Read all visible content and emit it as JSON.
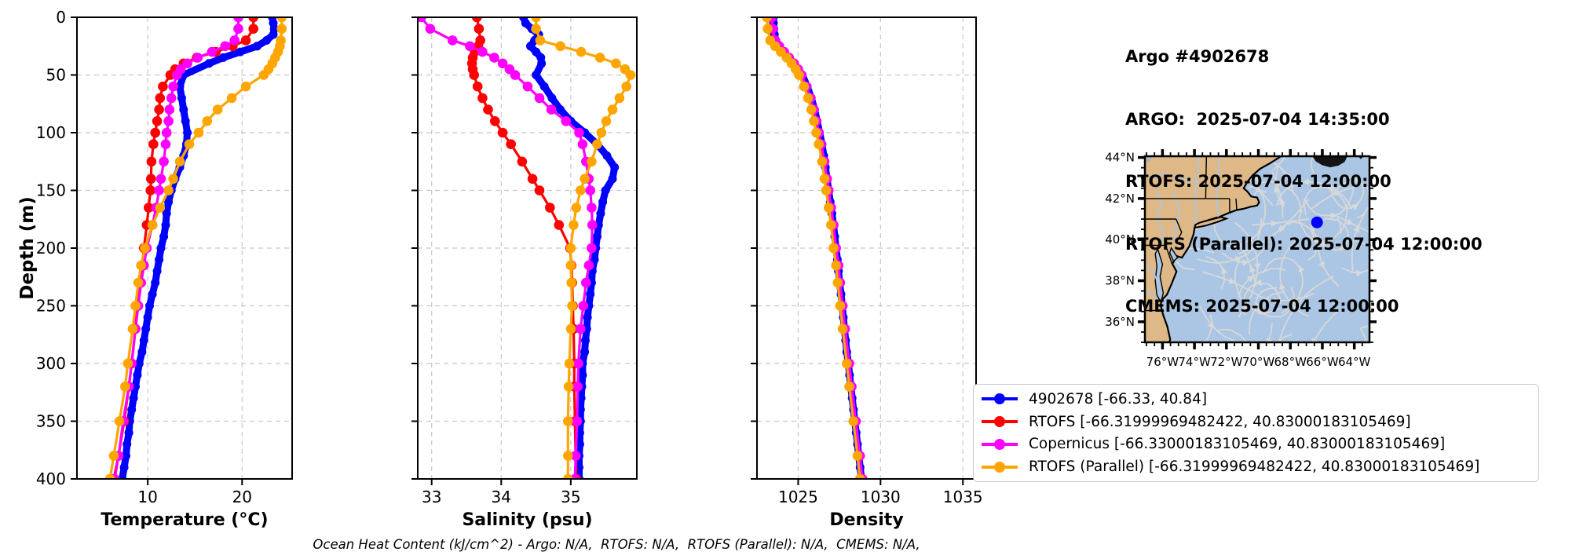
{
  "title_block": {
    "lines": [
      "Argo #4902678",
      "ARGO:  2025-07-04 14:35:00",
      "RTOFS: 2025-07-04 12:00:00",
      "RTOFS (Parallel): 2025-07-04 12:00:00",
      "CMEMS: 2025-07-04 12:00:00"
    ]
  },
  "caption": "Ocean Heat Content (kJ/cm^2) - Argo: N/A,  RTOFS: N/A,  RTOFS (Parallel): N/A,  CMEMS: N/A,",
  "depth_axis": {
    "label": "Depth (m)",
    "ticks": [
      0,
      50,
      100,
      150,
      200,
      250,
      300,
      350,
      400
    ],
    "range": [
      0,
      400
    ]
  },
  "colors": {
    "argo": "#0000ff",
    "rtofs": "#ff0000",
    "copernicus": "#ff00ff",
    "rtofs_parallel": "#ffa500",
    "grid": "#c8c8c8",
    "frame": "#000000"
  },
  "legend": {
    "entries": [
      {
        "label": "4902678 [-66.33, 40.84]",
        "color": "#0000ff"
      },
      {
        "label": "RTOFS [-66.31999969482422, 40.83000183105469]",
        "color": "#ff0000"
      },
      {
        "label": "Copernicus [-66.33000183105469, 40.83000183105469]",
        "color": "#ff00ff"
      },
      {
        "label": "RTOFS (Parallel) [-66.31999969482422, 40.83000183105469]",
        "color": "#ffa500"
      }
    ]
  },
  "map": {
    "lon_tick_labels": [
      "76°W",
      "74°W",
      "72°W",
      "70°W",
      "68°W",
      "66°W",
      "64°W"
    ],
    "lon_tick_values": [
      -76,
      -74,
      -72,
      -70,
      -68,
      -66,
      -64
    ],
    "lat_tick_labels": [
      "44°N",
      "42°N",
      "40°N",
      "38°N",
      "36°N"
    ],
    "lat_tick_values": [
      44,
      42,
      40,
      38,
      36
    ],
    "extent": {
      "lon_west": -77.1,
      "lon_east": -63.05,
      "lat_south": 35.0,
      "lat_north": 44.06
    },
    "marker": {
      "lon": -66.33,
      "lat": 40.84,
      "color": "#0000ff"
    },
    "land_color": "#deb887",
    "ocean_color": "#aac6e4",
    "streamline_color": "#d8d8d8"
  },
  "chart_data": [
    {
      "type": "line",
      "xlabel": "Temperature (°C)",
      "xlim": [
        2.5,
        25.3
      ],
      "xticks": [
        10,
        20
      ],
      "xtick_labels": [
        "10",
        "20"
      ],
      "ylabel": "Depth (m)",
      "ylim": [
        0,
        400
      ],
      "grid": true,
      "series": [
        {
          "name": "4902678",
          "color": "#0000ff",
          "line_width": 9,
          "marker_size": 5.5,
          "depths": [
            0,
            5,
            10,
            15,
            20,
            25,
            30,
            35,
            40,
            50,
            60,
            70,
            80,
            90,
            100,
            110,
            120,
            130,
            140,
            150,
            160,
            170,
            180,
            190,
            200,
            210,
            220,
            230,
            240,
            250,
            260,
            270,
            280,
            290,
            300,
            310,
            320,
            330,
            340,
            350,
            360,
            370,
            380,
            390,
            400
          ],
          "values": [
            23.2,
            23.3,
            23.4,
            23.3,
            22.6,
            21.6,
            19.8,
            18.0,
            16.5,
            13.8,
            13.4,
            13.6,
            13.8,
            14.0,
            14.2,
            14.1,
            13.8,
            13.4,
            12.9,
            12.5,
            12.2,
            12.0,
            11.9,
            11.7,
            11.4,
            11.2,
            11.0,
            10.8,
            10.5,
            10.2,
            10.0,
            9.8,
            9.6,
            9.4,
            9.1,
            8.9,
            8.7,
            8.5,
            8.3,
            8.1,
            8.0,
            7.8,
            7.7,
            7.5,
            7.3
          ]
        },
        {
          "name": "RTOFS",
          "color": "#ff0000",
          "line_width": 3.2,
          "marker_size": 6.3,
          "depths": [
            0,
            10,
            20,
            25,
            30,
            35,
            40,
            45,
            50,
            60,
            70,
            80,
            90,
            100,
            110,
            125,
            140,
            150,
            165,
            180,
            200,
            215,
            230,
            250,
            270,
            300,
            320,
            350,
            380,
            400
          ],
          "values": [
            21.2,
            21.2,
            20.4,
            19.0,
            17.2,
            15.2,
            13.8,
            12.9,
            12.4,
            11.6,
            11.3,
            11.2,
            11.0,
            10.8,
            10.6,
            10.4,
            10.35,
            10.3,
            10.1,
            9.9,
            9.6,
            9.4,
            9.2,
            8.9,
            8.7,
            8.3,
            8.0,
            7.5,
            6.9,
            6.4
          ]
        },
        {
          "name": "Copernicus",
          "color": "#ff00ff",
          "line_width": 3.2,
          "marker_size": 6.3,
          "depths": [
            0,
            10,
            20,
            25,
            30,
            35,
            40,
            45,
            50,
            60,
            70,
            80,
            90,
            100,
            110,
            125,
            140,
            150,
            165,
            180,
            200,
            215,
            230,
            250,
            270,
            300,
            320,
            350,
            380,
            400
          ],
          "values": [
            19.6,
            19.6,
            19.2,
            18.2,
            16.8,
            15.3,
            14.2,
            13.5,
            13.1,
            12.7,
            12.5,
            12.3,
            12.2,
            12.0,
            11.9,
            11.7,
            11.4,
            11.2,
            10.9,
            10.5,
            9.9,
            9.6,
            9.3,
            9.0,
            8.7,
            8.3,
            8.0,
            7.4,
            6.9,
            6.5
          ]
        },
        {
          "name": "RTOFS (Parallel)",
          "color": "#ffa500",
          "line_width": 3.2,
          "marker_size": 6.3,
          "depths": [
            0,
            10,
            20,
            25,
            30,
            35,
            40,
            45,
            50,
            60,
            70,
            80,
            90,
            100,
            110,
            125,
            140,
            150,
            165,
            180,
            200,
            215,
            230,
            250,
            270,
            300,
            320,
            350,
            380,
            400
          ],
          "values": [
            24.2,
            24.2,
            24.1,
            24.0,
            23.8,
            23.5,
            23.2,
            22.8,
            22.3,
            20.4,
            18.9,
            17.4,
            16.3,
            15.4,
            14.4,
            13.4,
            12.7,
            12.2,
            11.3,
            10.5,
            9.7,
            9.3,
            9.0,
            8.7,
            8.4,
            7.9,
            7.6,
            7.0,
            6.4,
            6.0
          ]
        }
      ]
    },
    {
      "type": "line",
      "xlabel": "Salinity (psu)",
      "xlim": [
        32.8,
        35.95
      ],
      "xticks": [
        33,
        34,
        35
      ],
      "xtick_labels": [
        "33",
        "34",
        "35"
      ],
      "ylabel": "Depth (m)",
      "ylim": [
        0,
        400
      ],
      "grid": true,
      "series": [
        {
          "name": "4902678",
          "color": "#0000ff",
          "line_width": 9,
          "marker_size": 5.5,
          "depths": [
            0,
            5,
            10,
            15,
            20,
            25,
            30,
            35,
            40,
            50,
            60,
            70,
            80,
            90,
            100,
            110,
            120,
            130,
            140,
            150,
            160,
            170,
            180,
            190,
            200,
            210,
            220,
            230,
            240,
            250,
            260,
            270,
            280,
            290,
            300,
            310,
            320,
            330,
            340,
            350,
            360,
            370,
            380,
            390,
            400
          ],
          "values": [
            34.32,
            34.35,
            34.44,
            34.54,
            34.48,
            34.42,
            34.5,
            34.57,
            34.58,
            34.5,
            34.62,
            34.73,
            34.85,
            35.0,
            35.2,
            35.38,
            35.52,
            35.63,
            35.6,
            35.5,
            35.46,
            35.43,
            35.4,
            35.38,
            35.36,
            35.34,
            35.31,
            35.3,
            35.28,
            35.26,
            35.24,
            35.23,
            35.21,
            35.2,
            35.17,
            35.17,
            35.16,
            35.15,
            35.14,
            35.14,
            35.13,
            35.13,
            35.12,
            35.12,
            35.12
          ]
        },
        {
          "name": "RTOFS",
          "color": "#ff0000",
          "line_width": 3.2,
          "marker_size": 6.3,
          "depths": [
            0,
            10,
            20,
            25,
            30,
            35,
            40,
            45,
            50,
            60,
            70,
            80,
            90,
            100,
            110,
            125,
            140,
            150,
            165,
            180,
            200,
            215,
            230,
            250,
            270,
            300,
            320,
            350,
            380,
            400
          ],
          "values": [
            33.65,
            33.68,
            33.7,
            33.67,
            33.62,
            33.59,
            33.58,
            33.59,
            33.61,
            33.66,
            33.73,
            33.81,
            33.91,
            34.02,
            34.14,
            34.3,
            34.45,
            34.55,
            34.7,
            34.83,
            34.99,
            35.01,
            35.02,
            35.03,
            35.04,
            35.05,
            35.05,
            35.06,
            35.07,
            35.08
          ]
        },
        {
          "name": "Copernicus",
          "color": "#ff00ff",
          "line_width": 3.2,
          "marker_size": 6.3,
          "depths": [
            0,
            10,
            20,
            25,
            30,
            35,
            40,
            45,
            50,
            60,
            70,
            80,
            90,
            100,
            110,
            125,
            140,
            150,
            165,
            180,
            200,
            215,
            230,
            250,
            270,
            300,
            320,
            350,
            380,
            400
          ],
          "values": [
            32.85,
            32.98,
            33.3,
            33.55,
            33.73,
            33.9,
            34.02,
            34.12,
            34.2,
            34.38,
            34.55,
            34.72,
            34.93,
            35.12,
            35.17,
            35.22,
            35.26,
            35.28,
            35.3,
            35.31,
            35.3,
            35.26,
            35.22,
            35.18,
            35.14,
            35.11,
            35.1,
            35.09,
            35.07,
            35.06
          ]
        },
        {
          "name": "RTOFS (Parallel)",
          "color": "#ffa500",
          "line_width": 3.2,
          "marker_size": 6.3,
          "depths": [
            0,
            10,
            20,
            25,
            30,
            35,
            40,
            45,
            50,
            60,
            70,
            80,
            90,
            100,
            110,
            125,
            140,
            150,
            165,
            180,
            200,
            215,
            230,
            250,
            270,
            300,
            320,
            350,
            380,
            400
          ],
          "values": [
            34.5,
            34.5,
            34.56,
            34.85,
            35.15,
            35.42,
            35.65,
            35.78,
            35.86,
            35.8,
            35.7,
            35.6,
            35.51,
            35.44,
            35.38,
            35.3,
            35.2,
            35.14,
            35.08,
            35.04,
            35.0,
            35.0,
            35.01,
            35.02,
            35.0,
            34.98,
            34.97,
            34.96,
            34.96,
            34.96
          ]
        }
      ]
    },
    {
      "type": "line",
      "xlabel": "Density",
      "xlim": [
        1022.5,
        1035.8
      ],
      "xticks": [
        1025,
        1030,
        1035
      ],
      "xtick_labels": [
        "1025",
        "1030",
        "1035"
      ],
      "ylabel": "Depth (m)",
      "ylim": [
        0,
        400
      ],
      "grid": true,
      "series": [
        {
          "name": "4902678",
          "color": "#0000ff",
          "line_width": 9,
          "marker_size": 5.5,
          "depths": [
            0,
            5,
            10,
            15,
            20,
            25,
            30,
            35,
            40,
            50,
            60,
            70,
            80,
            90,
            100,
            110,
            120,
            130,
            140,
            150,
            160,
            170,
            180,
            190,
            200,
            210,
            220,
            230,
            240,
            250,
            260,
            270,
            280,
            290,
            300,
            310,
            320,
            330,
            340,
            350,
            360,
            370,
            380,
            390,
            400
          ],
          "values": [
            1023.5,
            1023.5,
            1023.52,
            1023.56,
            1023.65,
            1023.85,
            1024.15,
            1024.45,
            1024.75,
            1025.25,
            1025.55,
            1025.8,
            1026.0,
            1026.15,
            1026.3,
            1026.45,
            1026.55,
            1026.65,
            1026.75,
            1026.85,
            1026.95,
            1027.05,
            1027.15,
            1027.22,
            1027.3,
            1027.38,
            1027.45,
            1027.52,
            1027.6,
            1027.67,
            1027.74,
            1027.81,
            1027.88,
            1027.95,
            1028.05,
            1028.12,
            1028.2,
            1028.28,
            1028.36,
            1028.44,
            1028.52,
            1028.6,
            1028.68,
            1028.76,
            1028.85
          ]
        },
        {
          "name": "RTOFS",
          "color": "#ff0000",
          "line_width": 3.2,
          "marker_size": 6.3,
          "depths": [
            0,
            10,
            20,
            25,
            30,
            35,
            40,
            45,
            50,
            60,
            70,
            80,
            90,
            100,
            110,
            125,
            140,
            150,
            165,
            180,
            200,
            215,
            230,
            250,
            270,
            300,
            320,
            350,
            380,
            400
          ],
          "values": [
            1023.35,
            1023.4,
            1023.55,
            1023.8,
            1024.1,
            1024.4,
            1024.7,
            1024.95,
            1025.15,
            1025.45,
            1025.7,
            1025.9,
            1026.05,
            1026.2,
            1026.35,
            1026.55,
            1026.7,
            1026.8,
            1026.95,
            1027.1,
            1027.25,
            1027.4,
            1027.5,
            1027.65,
            1027.8,
            1028.05,
            1028.2,
            1028.45,
            1028.7,
            1028.85
          ]
        },
        {
          "name": "Copernicus",
          "color": "#ff00ff",
          "line_width": 3.2,
          "marker_size": 6.3,
          "depths": [
            0,
            10,
            20,
            25,
            30,
            35,
            40,
            45,
            50,
            60,
            70,
            80,
            90,
            100,
            110,
            125,
            140,
            150,
            165,
            180,
            200,
            215,
            230,
            250,
            270,
            300,
            320,
            350,
            380,
            400
          ],
          "values": [
            1023.4,
            1023.45,
            1023.6,
            1023.85,
            1024.15,
            1024.45,
            1024.75,
            1025.0,
            1025.2,
            1025.5,
            1025.75,
            1025.95,
            1026.1,
            1026.25,
            1026.4,
            1026.6,
            1026.75,
            1026.85,
            1027.0,
            1027.15,
            1027.3,
            1027.45,
            1027.55,
            1027.7,
            1027.85,
            1028.1,
            1028.25,
            1028.5,
            1028.75,
            1028.9
          ]
        },
        {
          "name": "RTOFS (Parallel)",
          "color": "#ffa500",
          "line_width": 3.2,
          "marker_size": 6.3,
          "depths": [
            0,
            10,
            20,
            25,
            30,
            35,
            40,
            45,
            50,
            60,
            70,
            80,
            90,
            100,
            110,
            125,
            140,
            150,
            165,
            180,
            200,
            215,
            230,
            250,
            270,
            300,
            320,
            350,
            380,
            400
          ],
          "values": [
            1023.1,
            1023.15,
            1023.3,
            1023.6,
            1023.95,
            1024.3,
            1024.6,
            1024.85,
            1025.05,
            1025.35,
            1025.6,
            1025.8,
            1025.95,
            1026.1,
            1026.25,
            1026.45,
            1026.6,
            1026.7,
            1026.85,
            1027.0,
            1027.15,
            1027.3,
            1027.4,
            1027.55,
            1027.7,
            1027.95,
            1028.1,
            1028.35,
            1028.6,
            1028.75
          ]
        }
      ]
    }
  ]
}
